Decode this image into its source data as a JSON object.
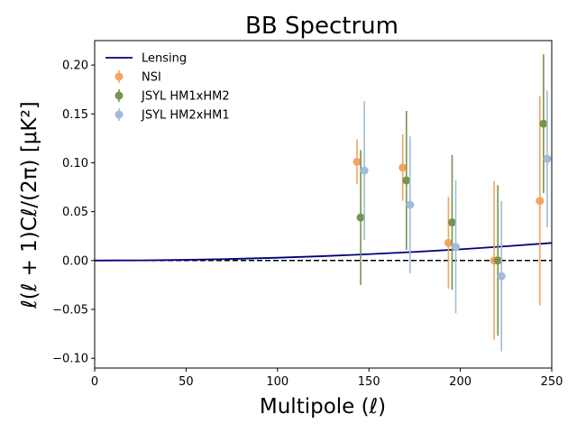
{
  "chart_data": {
    "type": "scatter",
    "title": "BB Spectrum",
    "xlabel": "Multipole (ℓ)",
    "ylabel": "ℓ(ℓ + 1)Cℓ/(2π) [μK²]",
    "xlim": [
      0,
      250
    ],
    "ylim": [
      -0.11,
      0.225
    ],
    "xticks": [
      "0",
      "50",
      "100",
      "150",
      "200",
      "250"
    ],
    "yticks": [
      "−0.10",
      "−0.05",
      "0.00",
      "0.05",
      "0.10",
      "0.15",
      "0.20"
    ],
    "xtick_values": [
      0,
      50,
      100,
      150,
      200,
      250
    ],
    "ytick_values": [
      -0.1,
      -0.05,
      0.0,
      0.05,
      0.1,
      0.15,
      0.2
    ],
    "grid": false,
    "legend_position": "top-left",
    "reference_line": {
      "y": 0,
      "style": "dashed",
      "color": "#000000"
    },
    "lensing": {
      "name": "Lensing",
      "color": "#000080",
      "x": [
        0,
        25,
        50,
        75,
        100,
        125,
        150,
        175,
        200,
        225,
        250
      ],
      "y": [
        0.0,
        0.0002,
        0.0007,
        0.0016,
        0.0029,
        0.0045,
        0.0065,
        0.0088,
        0.0115,
        0.0146,
        0.018
      ]
    },
    "series": [
      {
        "name": "NSI",
        "color": "#f4a460",
        "x": [
          143.5,
          168.5,
          193.5,
          218.5,
          243.5
        ],
        "y": [
          0.101,
          0.095,
          0.018,
          0.0,
          0.061
        ],
        "yerr": [
          0.023,
          0.034,
          0.047,
          0.081,
          0.107
        ]
      },
      {
        "name": "JSYL HM1xHM2",
        "color": "#76944c",
        "x": [
          145.5,
          170.5,
          195.5,
          220.5,
          245.5
        ],
        "y": [
          0.044,
          0.082,
          0.039,
          0.0,
          0.14
        ],
        "yerr": [
          0.069,
          0.071,
          0.069,
          0.077,
          0.071
        ]
      },
      {
        "name": "JSYL HM2xHM1",
        "color": "#a0bcd8",
        "x": [
          147.5,
          172.5,
          197.5,
          222.5,
          247.5
        ],
        "y": [
          0.092,
          0.057,
          0.014,
          -0.016,
          0.104
        ],
        "yerr": [
          0.071,
          0.07,
          0.068,
          0.077,
          0.07
        ]
      }
    ]
  }
}
